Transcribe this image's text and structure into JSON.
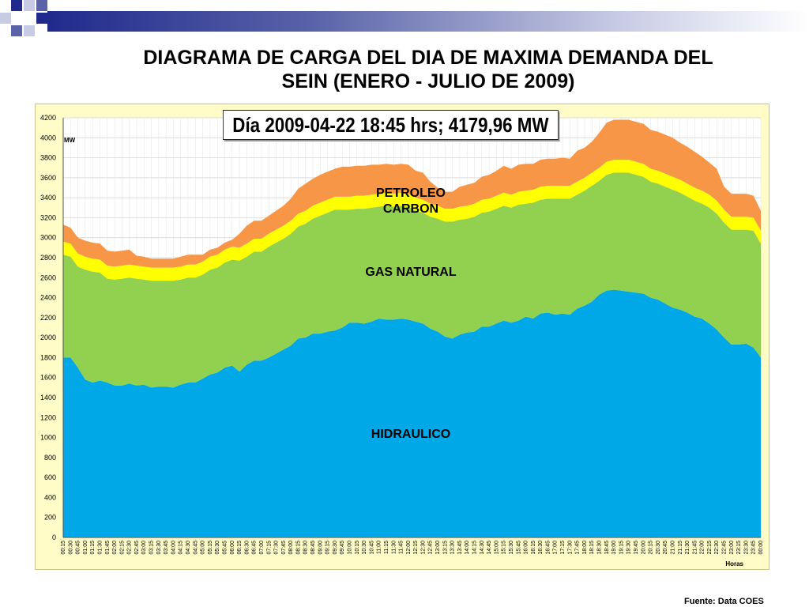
{
  "header": {
    "title_line1": "DIAGRAMA DE CARGA DEL DIA DE MAXIMA DEMANDA DEL",
    "title_line2": "SEIN  (ENERO - JULIO DE 2009)",
    "callout": "Día 2009-04-22  18:45 hrs;  4179,96 MW",
    "source": "Fuente: Data COES"
  },
  "colors": {
    "hidraulico": "#00a8e8",
    "gas_natural": "#92d050",
    "carbon": "#ffff00",
    "petroleo": "#f79646",
    "frame_bg": "#fffcc8"
  },
  "chart_data": {
    "type": "area",
    "stacked": true,
    "ylabel": "MW",
    "xlabel": "Horas",
    "ylim": [
      0,
      4200
    ],
    "yticks": [
      0,
      200,
      400,
      600,
      800,
      1000,
      1200,
      1400,
      1600,
      1800,
      2000,
      2200,
      2400,
      2600,
      2800,
      3000,
      3200,
      3400,
      3600,
      3800,
      4000,
      4200
    ],
    "grid": true,
    "x": [
      "00:15",
      "00:30",
      "00:45",
      "01:00",
      "01:15",
      "01:30",
      "01:45",
      "02:00",
      "02:15",
      "02:30",
      "02:45",
      "03:00",
      "03:15",
      "03:30",
      "03:45",
      "04:00",
      "04:15",
      "04:30",
      "04:45",
      "05:00",
      "05:15",
      "05:30",
      "05:45",
      "06:00",
      "06:15",
      "06:30",
      "06:45",
      "07:00",
      "07:15",
      "07:30",
      "07:45",
      "08:00",
      "08:15",
      "08:30",
      "08:45",
      "09:00",
      "09:15",
      "09:30",
      "09:45",
      "10:00",
      "10:15",
      "10:30",
      "10:45",
      "11:00",
      "11:15",
      "11:30",
      "11:45",
      "12:00",
      "12:15",
      "12:30",
      "12:45",
      "13:00",
      "13:15",
      "13:30",
      "13:45",
      "14:00",
      "14:15",
      "14:30",
      "14:45",
      "15:00",
      "15:15",
      "15:30",
      "15:45",
      "16:00",
      "16:15",
      "16:30",
      "16:45",
      "17:00",
      "17:15",
      "17:30",
      "17:45",
      "18:00",
      "18:15",
      "18:30",
      "18:45",
      "19:00",
      "19:15",
      "19:30",
      "19:45",
      "20:00",
      "20:15",
      "20:30",
      "20:45",
      "21:00",
      "21:15",
      "21:30",
      "21:45",
      "22:00",
      "22:15",
      "22:30",
      "22:45",
      "23:00",
      "23:15",
      "23:30",
      "23:45",
      "00:00"
    ],
    "series": [
      {
        "name": "HIDRAULICO",
        "values": [
          1800,
          1800,
          1700,
          1580,
          1550,
          1570,
          1550,
          1520,
          1520,
          1540,
          1520,
          1530,
          1500,
          1510,
          1510,
          1500,
          1530,
          1550,
          1550,
          1590,
          1630,
          1650,
          1700,
          1720,
          1660,
          1730,
          1770,
          1770,
          1800,
          1840,
          1880,
          1920,
          1990,
          2000,
          2040,
          2040,
          2060,
          2070,
          2100,
          2150,
          2150,
          2140,
          2160,
          2190,
          2180,
          2180,
          2190,
          2180,
          2160,
          2140,
          2090,
          2060,
          2010,
          1990,
          2030,
          2050,
          2060,
          2110,
          2110,
          2140,
          2170,
          2150,
          2170,
          2210,
          2190,
          2240,
          2250,
          2230,
          2240,
          2230,
          2290,
          2320,
          2360,
          2430,
          2470,
          2480,
          2470,
          2460,
          2450,
          2440,
          2400,
          2380,
          2340,
          2300,
          2280,
          2250,
          2210,
          2190,
          2140,
          2080,
          2000,
          1930,
          1930,
          1940,
          1900,
          1800
        ]
      },
      {
        "name": "GAS NATURAL",
        "values": [
          1030,
          1010,
          1010,
          1100,
          1110,
          1080,
          1040,
          1060,
          1070,
          1060,
          1070,
          1050,
          1070,
          1060,
          1060,
          1070,
          1050,
          1050,
          1050,
          1040,
          1050,
          1050,
          1050,
          1060,
          1110,
          1080,
          1090,
          1090,
          1110,
          1110,
          1110,
          1120,
          1120,
          1140,
          1150,
          1180,
          1190,
          1210,
          1180,
          1130,
          1140,
          1150,
          1140,
          1120,
          1140,
          1130,
          1130,
          1130,
          1110,
          1110,
          1120,
          1130,
          1150,
          1170,
          1150,
          1140,
          1150,
          1140,
          1150,
          1150,
          1150,
          1150,
          1160,
          1130,
          1160,
          1140,
          1140,
          1160,
          1150,
          1160,
          1140,
          1150,
          1160,
          1140,
          1160,
          1170,
          1180,
          1190,
          1180,
          1170,
          1160,
          1160,
          1170,
          1180,
          1170,
          1160,
          1160,
          1150,
          1160,
          1160,
          1150,
          1150,
          1150,
          1140,
          1170,
          1140
        ]
      },
      {
        "name": "CARBON",
        "values": [
          130,
          130,
          130,
          130,
          130,
          130,
          130,
          130,
          130,
          130,
          130,
          130,
          130,
          130,
          130,
          130,
          130,
          130,
          130,
          130,
          130,
          130,
          130,
          130,
          130,
          130,
          130,
          130,
          130,
          130,
          130,
          130,
          130,
          130,
          130,
          130,
          130,
          130,
          130,
          130,
          130,
          130,
          130,
          130,
          130,
          130,
          130,
          130,
          130,
          130,
          130,
          130,
          130,
          130,
          130,
          130,
          130,
          130,
          130,
          130,
          130,
          130,
          130,
          130,
          130,
          130,
          130,
          130,
          130,
          130,
          130,
          130,
          130,
          130,
          130,
          130,
          130,
          130,
          130,
          130,
          130,
          130,
          130,
          130,
          130,
          130,
          130,
          130,
          130,
          130,
          130,
          130,
          130,
          130,
          130,
          130
        ]
      },
      {
        "name": "PETROLEO",
        "values": [
          170,
          160,
          160,
          160,
          160,
          160,
          150,
          150,
          150,
          150,
          100,
          100,
          90,
          90,
          90,
          90,
          100,
          100,
          100,
          70,
          70,
          70,
          70,
          70,
          140,
          180,
          180,
          180,
          180,
          190,
          200,
          220,
          250,
          270,
          270,
          280,
          280,
          280,
          300,
          300,
          300,
          300,
          300,
          290,
          290,
          290,
          290,
          290,
          270,
          270,
          220,
          180,
          170,
          170,
          200,
          210,
          210,
          230,
          240,
          250,
          270,
          260,
          270,
          270,
          260,
          270,
          270,
          270,
          280,
          270,
          310,
          300,
          310,
          350,
          390,
          400,
          400,
          400,
          400,
          400,
          390,
          390,
          390,
          390,
          370,
          370,
          360,
          340,
          320,
          320,
          230,
          230,
          230,
          230,
          220,
          200
        ]
      }
    ],
    "annotations": [
      "PETROLEO",
      "CARBON",
      "GAS NATURAL",
      "HIDRAULICO"
    ]
  }
}
